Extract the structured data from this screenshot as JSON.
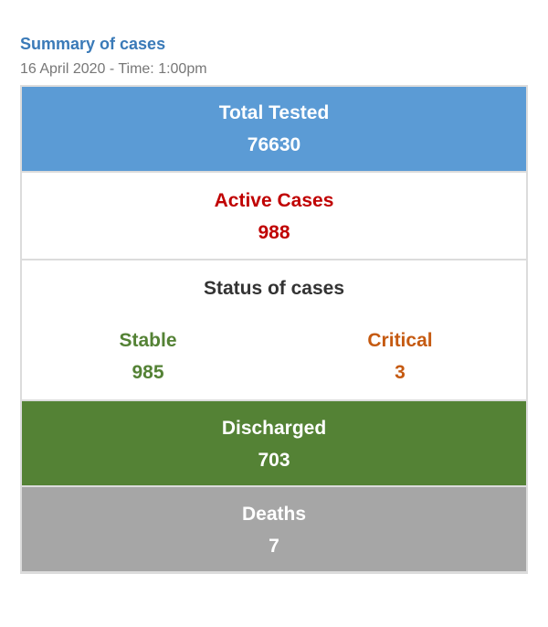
{
  "header": {
    "title": "Summary of cases",
    "subtitle": "16 April 2020 - Time: 1:00pm"
  },
  "total_tested": {
    "label": "Total Tested",
    "value": "76630",
    "color": "#5b9bd5"
  },
  "active_cases": {
    "label": "Active Cases",
    "value": "988",
    "color": "#c00000"
  },
  "status": {
    "label": "Status of cases",
    "stable": {
      "label": "Stable",
      "value": "985",
      "color": "#548235"
    },
    "critical": {
      "label": "Critical",
      "value": "3",
      "color": "#c55a11"
    }
  },
  "discharged": {
    "label": "Discharged",
    "value": "703",
    "color": "#548235"
  },
  "deaths": {
    "label": "Deaths",
    "value": "7",
    "color": "#a6a6a6"
  }
}
